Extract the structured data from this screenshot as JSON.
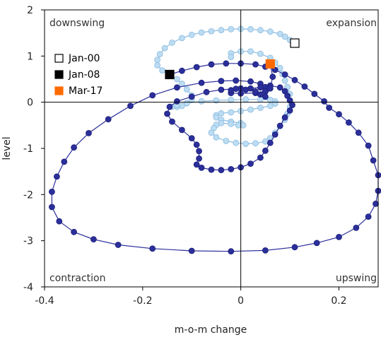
{
  "chart_data": {
    "type": "scatter",
    "xlabel": "m-o-m change",
    "ylabel": "level",
    "xlim": [
      -0.4,
      0.28
    ],
    "ylim": [
      -4,
      2
    ],
    "x_ticks": [
      "-0.4",
      "-0.2",
      "0",
      "0.2"
    ],
    "x_tick_values": [
      -0.4,
      -0.2,
      0,
      0.2
    ],
    "y_ticks": [
      "2",
      "1",
      "0",
      "-1",
      "-2",
      "-3",
      "-4"
    ],
    "y_tick_values": [
      2,
      1,
      0,
      -1,
      -2,
      -3,
      -4
    ],
    "grid": false,
    "legend_position": "top-left",
    "quadrant_labels": {
      "top_left": "downswing",
      "top_right": "expansion",
      "bottom_left": "contraction",
      "bottom_right": "upswing"
    },
    "colors": {
      "light_series": "#bcdcf2",
      "light_stroke": "#8bbbe0",
      "dark_series": "#2b2f9a",
      "dark_stroke": "#1c1f78",
      "orange": "#ff6a00",
      "axis": "#000000"
    },
    "markers": [
      {
        "label": "Jan-00",
        "x": 0.11,
        "y": 1.28,
        "style": "open-square"
      },
      {
        "label": "Jan-08",
        "x": -0.145,
        "y": 0.6,
        "style": "black-square"
      },
      {
        "label": "Mar-17",
        "x": 0.06,
        "y": 0.83,
        "style": "orange-square"
      }
    ],
    "series": [
      {
        "style": "light",
        "points": [
          [
            0.11,
            1.28
          ],
          [
            0.1,
            1.35
          ],
          [
            0.09,
            1.42
          ],
          [
            0.08,
            1.48
          ],
          [
            0.06,
            1.53
          ],
          [
            0.04,
            1.56
          ],
          [
            0.02,
            1.58
          ],
          [
            0.0,
            1.59
          ],
          [
            -0.02,
            1.58
          ],
          [
            -0.04,
            1.56
          ],
          [
            -0.06,
            1.54
          ],
          [
            -0.08,
            1.51
          ],
          [
            -0.1,
            1.46
          ],
          [
            -0.12,
            1.39
          ],
          [
            -0.14,
            1.29
          ],
          [
            -0.155,
            1.17
          ],
          [
            -0.165,
            1.04
          ],
          [
            -0.17,
            0.92
          ],
          [
            -0.17,
            0.8
          ],
          [
            -0.16,
            0.69
          ],
          [
            -0.145,
            0.6
          ],
          [
            -0.13,
            0.5
          ],
          [
            -0.12,
            0.4
          ],
          [
            -0.11,
            0.28
          ],
          [
            -0.1,
            0.15
          ],
          [
            -0.1,
            0.05
          ],
          [
            -0.11,
            -0.02
          ],
          [
            -0.12,
            -0.08
          ],
          [
            -0.13,
            -0.1
          ],
          [
            -0.14,
            -0.1
          ],
          [
            -0.13,
            -0.06
          ],
          [
            -0.11,
            -0.02
          ],
          [
            -0.08,
            0.02
          ],
          [
            -0.05,
            0.04
          ],
          [
            -0.02,
            0.05
          ],
          [
            0.01,
            0.06
          ],
          [
            0.04,
            0.06
          ],
          [
            0.06,
            0.05
          ],
          [
            0.07,
            0.02
          ],
          [
            0.07,
            -0.03
          ],
          [
            0.06,
            -0.08
          ],
          [
            0.04,
            -0.12
          ],
          [
            0.02,
            -0.16
          ],
          [
            0.0,
            -0.19
          ],
          [
            -0.02,
            -0.22
          ],
          [
            -0.04,
            -0.24
          ],
          [
            -0.05,
            -0.28
          ],
          [
            -0.05,
            -0.33
          ],
          [
            -0.04,
            -0.38
          ],
          [
            -0.02,
            -0.42
          ],
          [
            0.0,
            -0.45
          ],
          [
            0.005,
            -0.5
          ],
          [
            -0.005,
            -0.5
          ],
          [
            -0.02,
            -0.47
          ],
          [
            -0.04,
            -0.45
          ],
          [
            -0.05,
            -0.49
          ],
          [
            -0.055,
            -0.56
          ],
          [
            -0.06,
            -0.66
          ],
          [
            -0.05,
            -0.76
          ],
          [
            -0.03,
            -0.84
          ],
          [
            -0.01,
            -0.88
          ],
          [
            0.01,
            -0.9
          ],
          [
            0.03,
            -0.89
          ],
          [
            0.05,
            -0.85
          ],
          [
            0.06,
            -0.78
          ],
          [
            0.07,
            -0.66
          ],
          [
            0.08,
            -0.52
          ],
          [
            0.09,
            -0.38
          ],
          [
            0.095,
            -0.25
          ],
          [
            0.1,
            -0.1
          ],
          [
            0.1,
            0.04
          ],
          [
            0.1,
            0.18
          ],
          [
            0.095,
            0.33
          ],
          [
            0.09,
            0.47
          ],
          [
            0.085,
            0.61
          ],
          [
            0.08,
            0.74
          ],
          [
            0.07,
            0.86
          ],
          [
            0.06,
            0.96
          ],
          [
            0.04,
            1.05
          ],
          [
            0.02,
            1.1
          ],
          [
            0.0,
            1.1
          ],
          [
            -0.02,
            1.06
          ],
          [
            -0.02,
            0.98
          ]
        ]
      },
      {
        "style": "dark",
        "points": [
          [
            -0.145,
            0.6
          ],
          [
            -0.12,
            0.68
          ],
          [
            -0.09,
            0.76
          ],
          [
            -0.06,
            0.82
          ],
          [
            -0.03,
            0.84
          ],
          [
            0.0,
            0.84
          ],
          [
            0.03,
            0.82
          ],
          [
            0.05,
            0.77
          ],
          [
            0.07,
            0.7
          ],
          [
            0.09,
            0.6
          ],
          [
            0.11,
            0.48
          ],
          [
            0.13,
            0.34
          ],
          [
            0.15,
            0.18
          ],
          [
            0.17,
            0.02
          ],
          [
            0.18,
            -0.12
          ],
          [
            0.2,
            -0.26
          ],
          [
            0.22,
            -0.44
          ],
          [
            0.24,
            -0.66
          ],
          [
            0.26,
            -0.94
          ],
          [
            0.27,
            -1.26
          ],
          [
            0.28,
            -1.58
          ],
          [
            0.28,
            -1.92
          ],
          [
            0.275,
            -2.2
          ],
          [
            0.26,
            -2.48
          ],
          [
            0.235,
            -2.72
          ],
          [
            0.2,
            -2.92
          ],
          [
            0.155,
            -3.05
          ],
          [
            0.11,
            -3.14
          ],
          [
            0.05,
            -3.21
          ],
          [
            -0.02,
            -3.23
          ],
          [
            -0.1,
            -3.22
          ],
          [
            -0.18,
            -3.17
          ],
          [
            -0.25,
            -3.09
          ],
          [
            -0.3,
            -2.97
          ],
          [
            -0.34,
            -2.81
          ],
          [
            -0.37,
            -2.58
          ],
          [
            -0.385,
            -2.27
          ],
          [
            -0.385,
            -1.94
          ],
          [
            -0.375,
            -1.61
          ],
          [
            -0.36,
            -1.29
          ],
          [
            -0.34,
            -0.98
          ],
          [
            -0.31,
            -0.67
          ],
          [
            -0.27,
            -0.37
          ],
          [
            -0.225,
            -0.08
          ],
          [
            -0.18,
            0.15
          ],
          [
            -0.13,
            0.32
          ],
          [
            -0.08,
            0.42
          ],
          [
            -0.04,
            0.46
          ],
          [
            -0.01,
            0.47
          ],
          [
            0.02,
            0.45
          ],
          [
            0.04,
            0.4
          ],
          [
            0.05,
            0.33
          ],
          [
            0.05,
            0.24
          ],
          [
            0.03,
            0.2
          ],
          [
            0.0,
            0.19
          ],
          [
            -0.02,
            0.2
          ],
          [
            -0.02,
            0.26
          ],
          [
            0.0,
            0.3
          ],
          [
            0.02,
            0.3
          ],
          [
            0.04,
            0.32
          ],
          [
            0.06,
            0.36
          ],
          [
            0.08,
            0.32
          ],
          [
            0.09,
            0.24
          ],
          [
            0.095,
            0.14
          ],
          [
            0.1,
            0.04
          ],
          [
            0.105,
            -0.06
          ],
          [
            0.1,
            -0.18
          ],
          [
            0.09,
            -0.33
          ],
          [
            0.08,
            -0.51
          ],
          [
            0.07,
            -0.7
          ],
          [
            0.06,
            -0.88
          ],
          [
            0.05,
            -1.05
          ],
          [
            0.04,
            -1.2
          ],
          [
            0.02,
            -1.33
          ],
          [
            0.0,
            -1.41
          ],
          [
            -0.02,
            -1.45
          ],
          [
            -0.04,
            -1.47
          ],
          [
            -0.06,
            -1.46
          ],
          [
            -0.08,
            -1.42
          ],
          [
            -0.09,
            -1.35
          ],
          [
            -0.085,
            -1.22
          ],
          [
            -0.085,
            -1.06
          ],
          [
            -0.09,
            -0.92
          ],
          [
            -0.1,
            -0.78
          ],
          [
            -0.12,
            -0.6
          ],
          [
            -0.14,
            -0.42
          ],
          [
            -0.15,
            -0.25
          ],
          [
            -0.145,
            -0.1
          ],
          [
            -0.13,
            0.02
          ],
          [
            -0.1,
            0.12
          ],
          [
            -0.07,
            0.22
          ],
          [
            -0.04,
            0.27
          ],
          [
            -0.01,
            0.29
          ],
          [
            0.01,
            0.27
          ],
          [
            0.03,
            0.23
          ],
          [
            0.04,
            0.17
          ],
          [
            0.05,
            0.12
          ],
          [
            0.06,
            0.3
          ],
          [
            0.065,
            0.55
          ],
          [
            0.06,
            0.83
          ]
        ]
      }
    ]
  }
}
